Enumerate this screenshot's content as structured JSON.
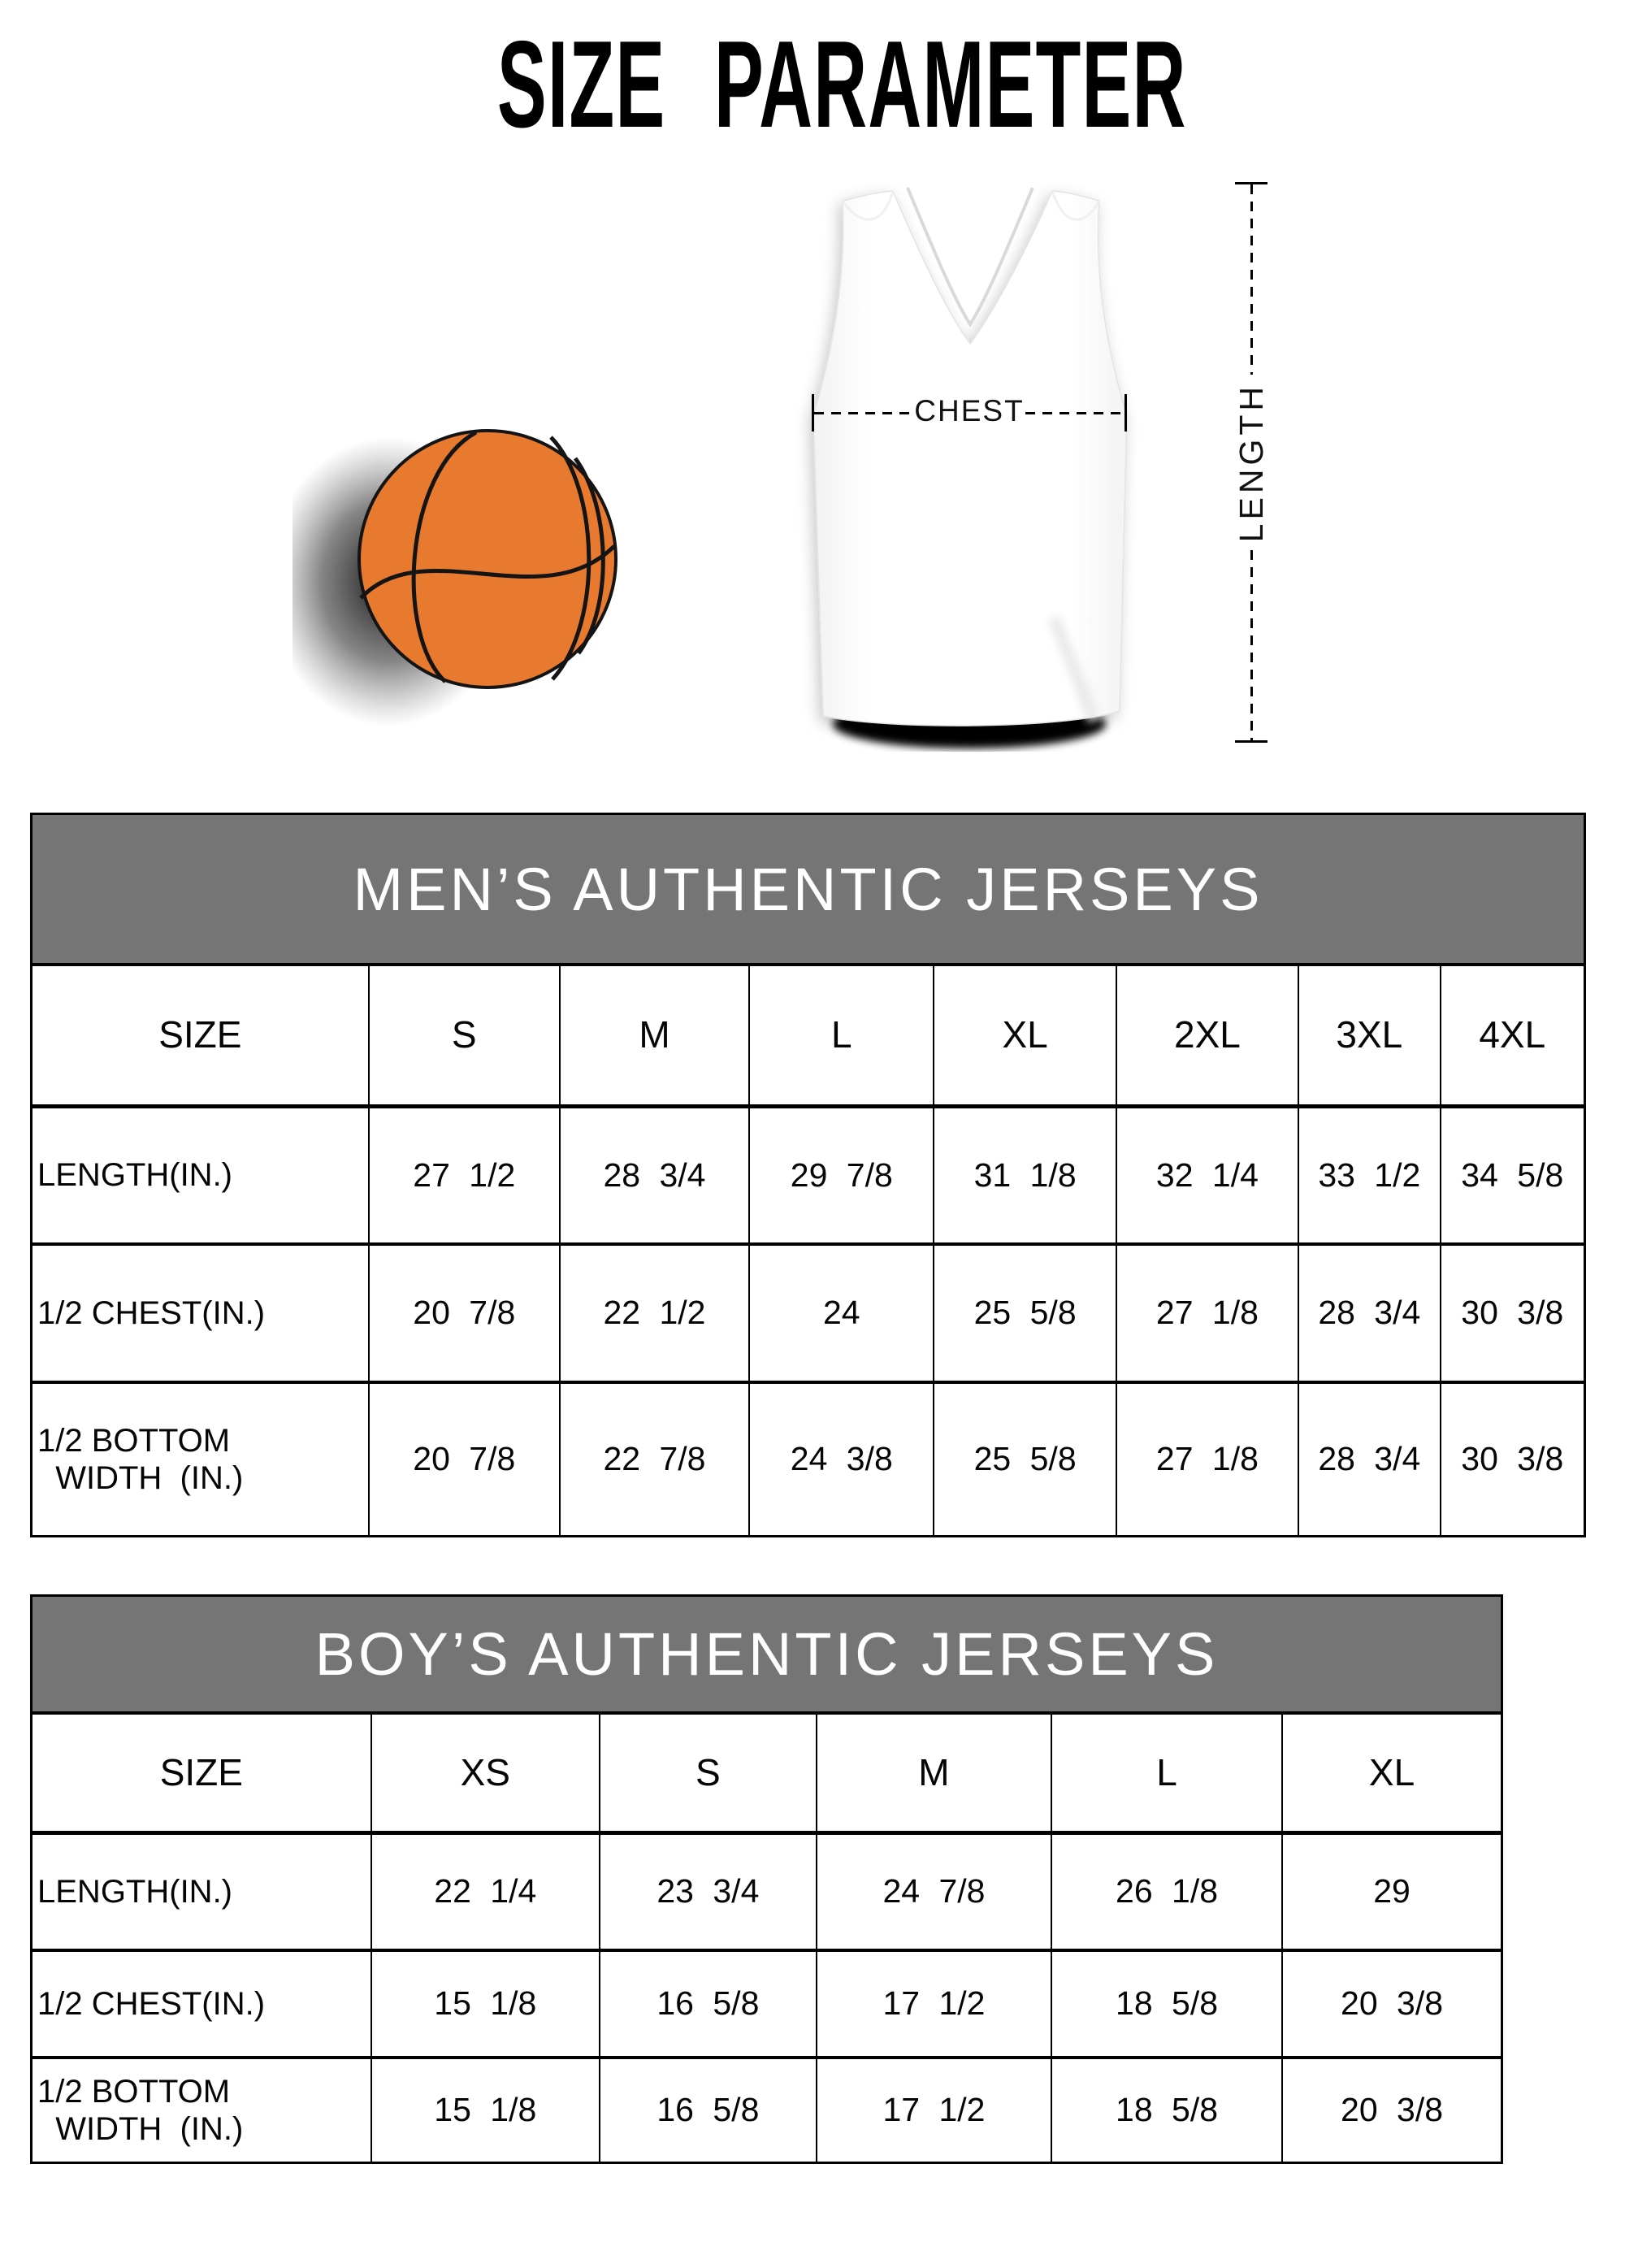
{
  "title": "SIZE PARAMETER",
  "figure": {
    "chest_label": "CHEST",
    "length_label": "LENGTH",
    "basketball_icon": "basketball-image",
    "jersey_icon": "jersey-image"
  },
  "colors": {
    "header_band": "#757575",
    "band_text": "#ffffff",
    "border": "#000000",
    "basketball": "#e87a2f"
  },
  "tables": {
    "men": {
      "title": "MEN’S AUTHENTIC JERSEYS",
      "size_label": "SIZE",
      "sizes": [
        "S",
        "M",
        "L",
        "XL",
        "2XL",
        "3XL",
        "4XL"
      ],
      "rows": [
        {
          "label": "LENGTH(IN.)",
          "values": [
            "27 1/2",
            "28 3/4",
            "29 7/8",
            "31 1/8",
            "32 1/4",
            "33 1/2",
            "34 5/8"
          ]
        },
        {
          "label": "1/2 CHEST(IN.)",
          "values": [
            "20 7/8",
            "22 1/2",
            "24",
            "25 5/8",
            "27 1/8",
            "28 3/4",
            "30 3/8"
          ]
        },
        {
          "label": "1/2 BOTTOM\n  WIDTH  (IN.)",
          "values": [
            "20 7/8",
            "22 7/8",
            "24 3/8",
            "25 5/8",
            "27 1/8",
            "28 3/4",
            "30 3/8"
          ]
        }
      ]
    },
    "boys": {
      "title": "BOY’S AUTHENTIC JERSEYS",
      "size_label": "SIZE",
      "sizes": [
        "XS",
        "S",
        "M",
        "L",
        "XL"
      ],
      "rows": [
        {
          "label": "LENGTH(IN.)",
          "values": [
            "22 1/4",
            "23 3/4",
            "24 7/8",
            "26 1/8",
            "29"
          ]
        },
        {
          "label": "1/2 CHEST(IN.)",
          "values": [
            "15 1/8",
            "16 5/8",
            "17 1/2",
            "18 5/8",
            "20 3/8"
          ]
        },
        {
          "label": "1/2 BOTTOM\n  WIDTH  (IN.)",
          "values": [
            "15 1/8",
            "16 5/8",
            "17 1/2",
            "18 5/8",
            "20 3/8"
          ]
        }
      ]
    }
  }
}
